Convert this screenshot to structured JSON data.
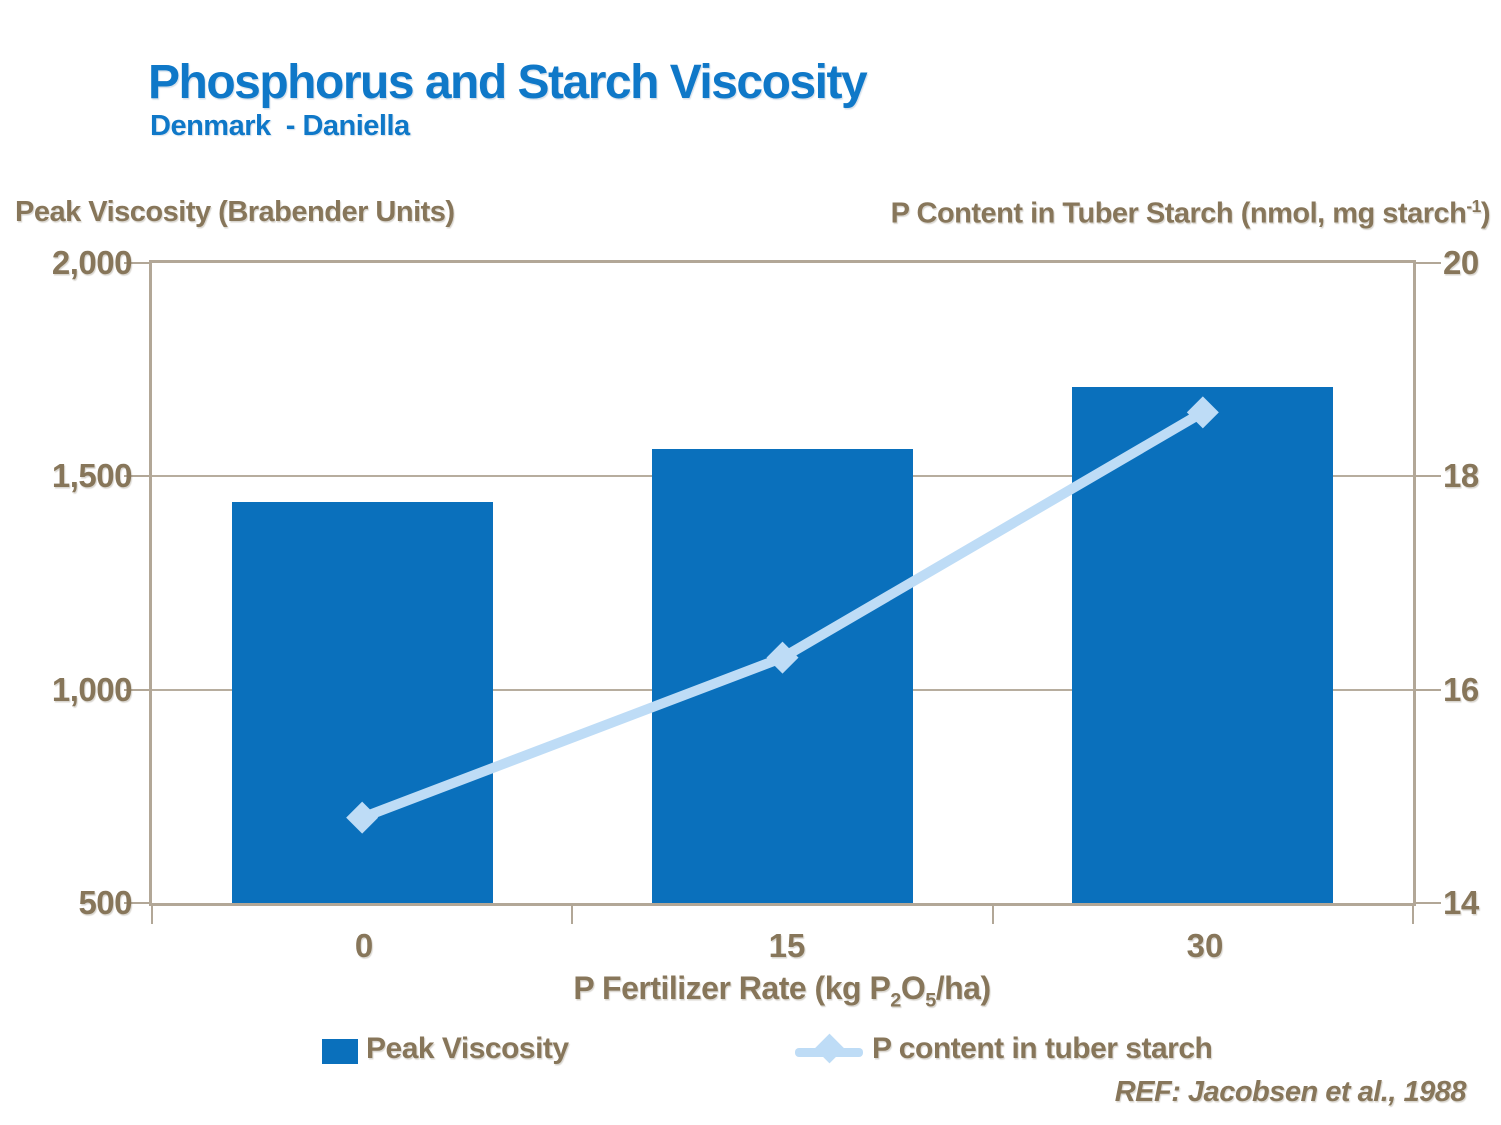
{
  "header": {
    "title": "Phosphorus and Starch Viscosity",
    "subtitle": "Denmark  - Daniella"
  },
  "left_axis": {
    "title": "Peak Viscosity (Brabender Units)",
    "tick_labels": [
      "2,000",
      "1,500",
      "1,000",
      "500"
    ]
  },
  "right_axis": {
    "title_main": "P Content in Tuber Starch (nmol, mg starch",
    "title_sup": "-1",
    "title_close": ")",
    "tick_labels": [
      "20",
      "18",
      "16",
      "14"
    ]
  },
  "x_axis": {
    "tick_labels": [
      "0",
      "15",
      "30"
    ],
    "title_pre": "P Fertilizer Rate (kg P",
    "title_sub1": "2",
    "title_mid": "O",
    "title_sub2": "5",
    "title_post": "/ha)"
  },
  "legend": {
    "items": [
      {
        "label": "Peak Viscosity",
        "swatch": "square",
        "color": "#0a70bc"
      },
      {
        "label": "P content in tuber starch",
        "swatch": "line-diamond",
        "color": "#bedcf6"
      }
    ]
  },
  "footer": {
    "ref": "REF: Jacobsen et al., 1988"
  },
  "colors": {
    "title_blue": "#0f78c8",
    "bar_blue": "#0a70bc",
    "line_light_blue": "#bedcf6",
    "axis_brown": "#87765a",
    "frame_tan": "#b2a797"
  },
  "chart_data": {
    "type": "bar",
    "subtype": "combo bar+line, dual y-axis",
    "categories": [
      "0",
      "15",
      "30"
    ],
    "series": [
      {
        "name": "Peak Viscosity",
        "type": "bar",
        "axis": "left",
        "values": [
          1440,
          1565,
          1710
        ],
        "color": "#0a70bc"
      },
      {
        "name": "P content in tuber starch",
        "type": "line",
        "axis": "right",
        "values": [
          14.8,
          16.3,
          18.6
        ],
        "color": "#bedcf6",
        "marker": "diamond"
      }
    ],
    "title": "Phosphorus and Starch Viscosity",
    "subtitle": "Denmark - Daniella",
    "xlabel": "P Fertilizer Rate (kg P2O5/ha)",
    "ylabel_left": "Peak Viscosity (Brabender Units)",
    "ylabel_right": "P Content in Tuber Starch (nmol, mg starch-1)",
    "ylim_left": [
      500,
      2000
    ],
    "ylim_right": [
      14,
      20
    ],
    "yticks_left": [
      2000,
      1500,
      1000,
      500
    ],
    "yticks_right": [
      20,
      18,
      16,
      14
    ],
    "grid": "horizontal gridlines at left 1000 and 1500 (right 16 and 18)",
    "legend_position": "bottom",
    "source": "REF: Jacobsen et al., 1988"
  }
}
